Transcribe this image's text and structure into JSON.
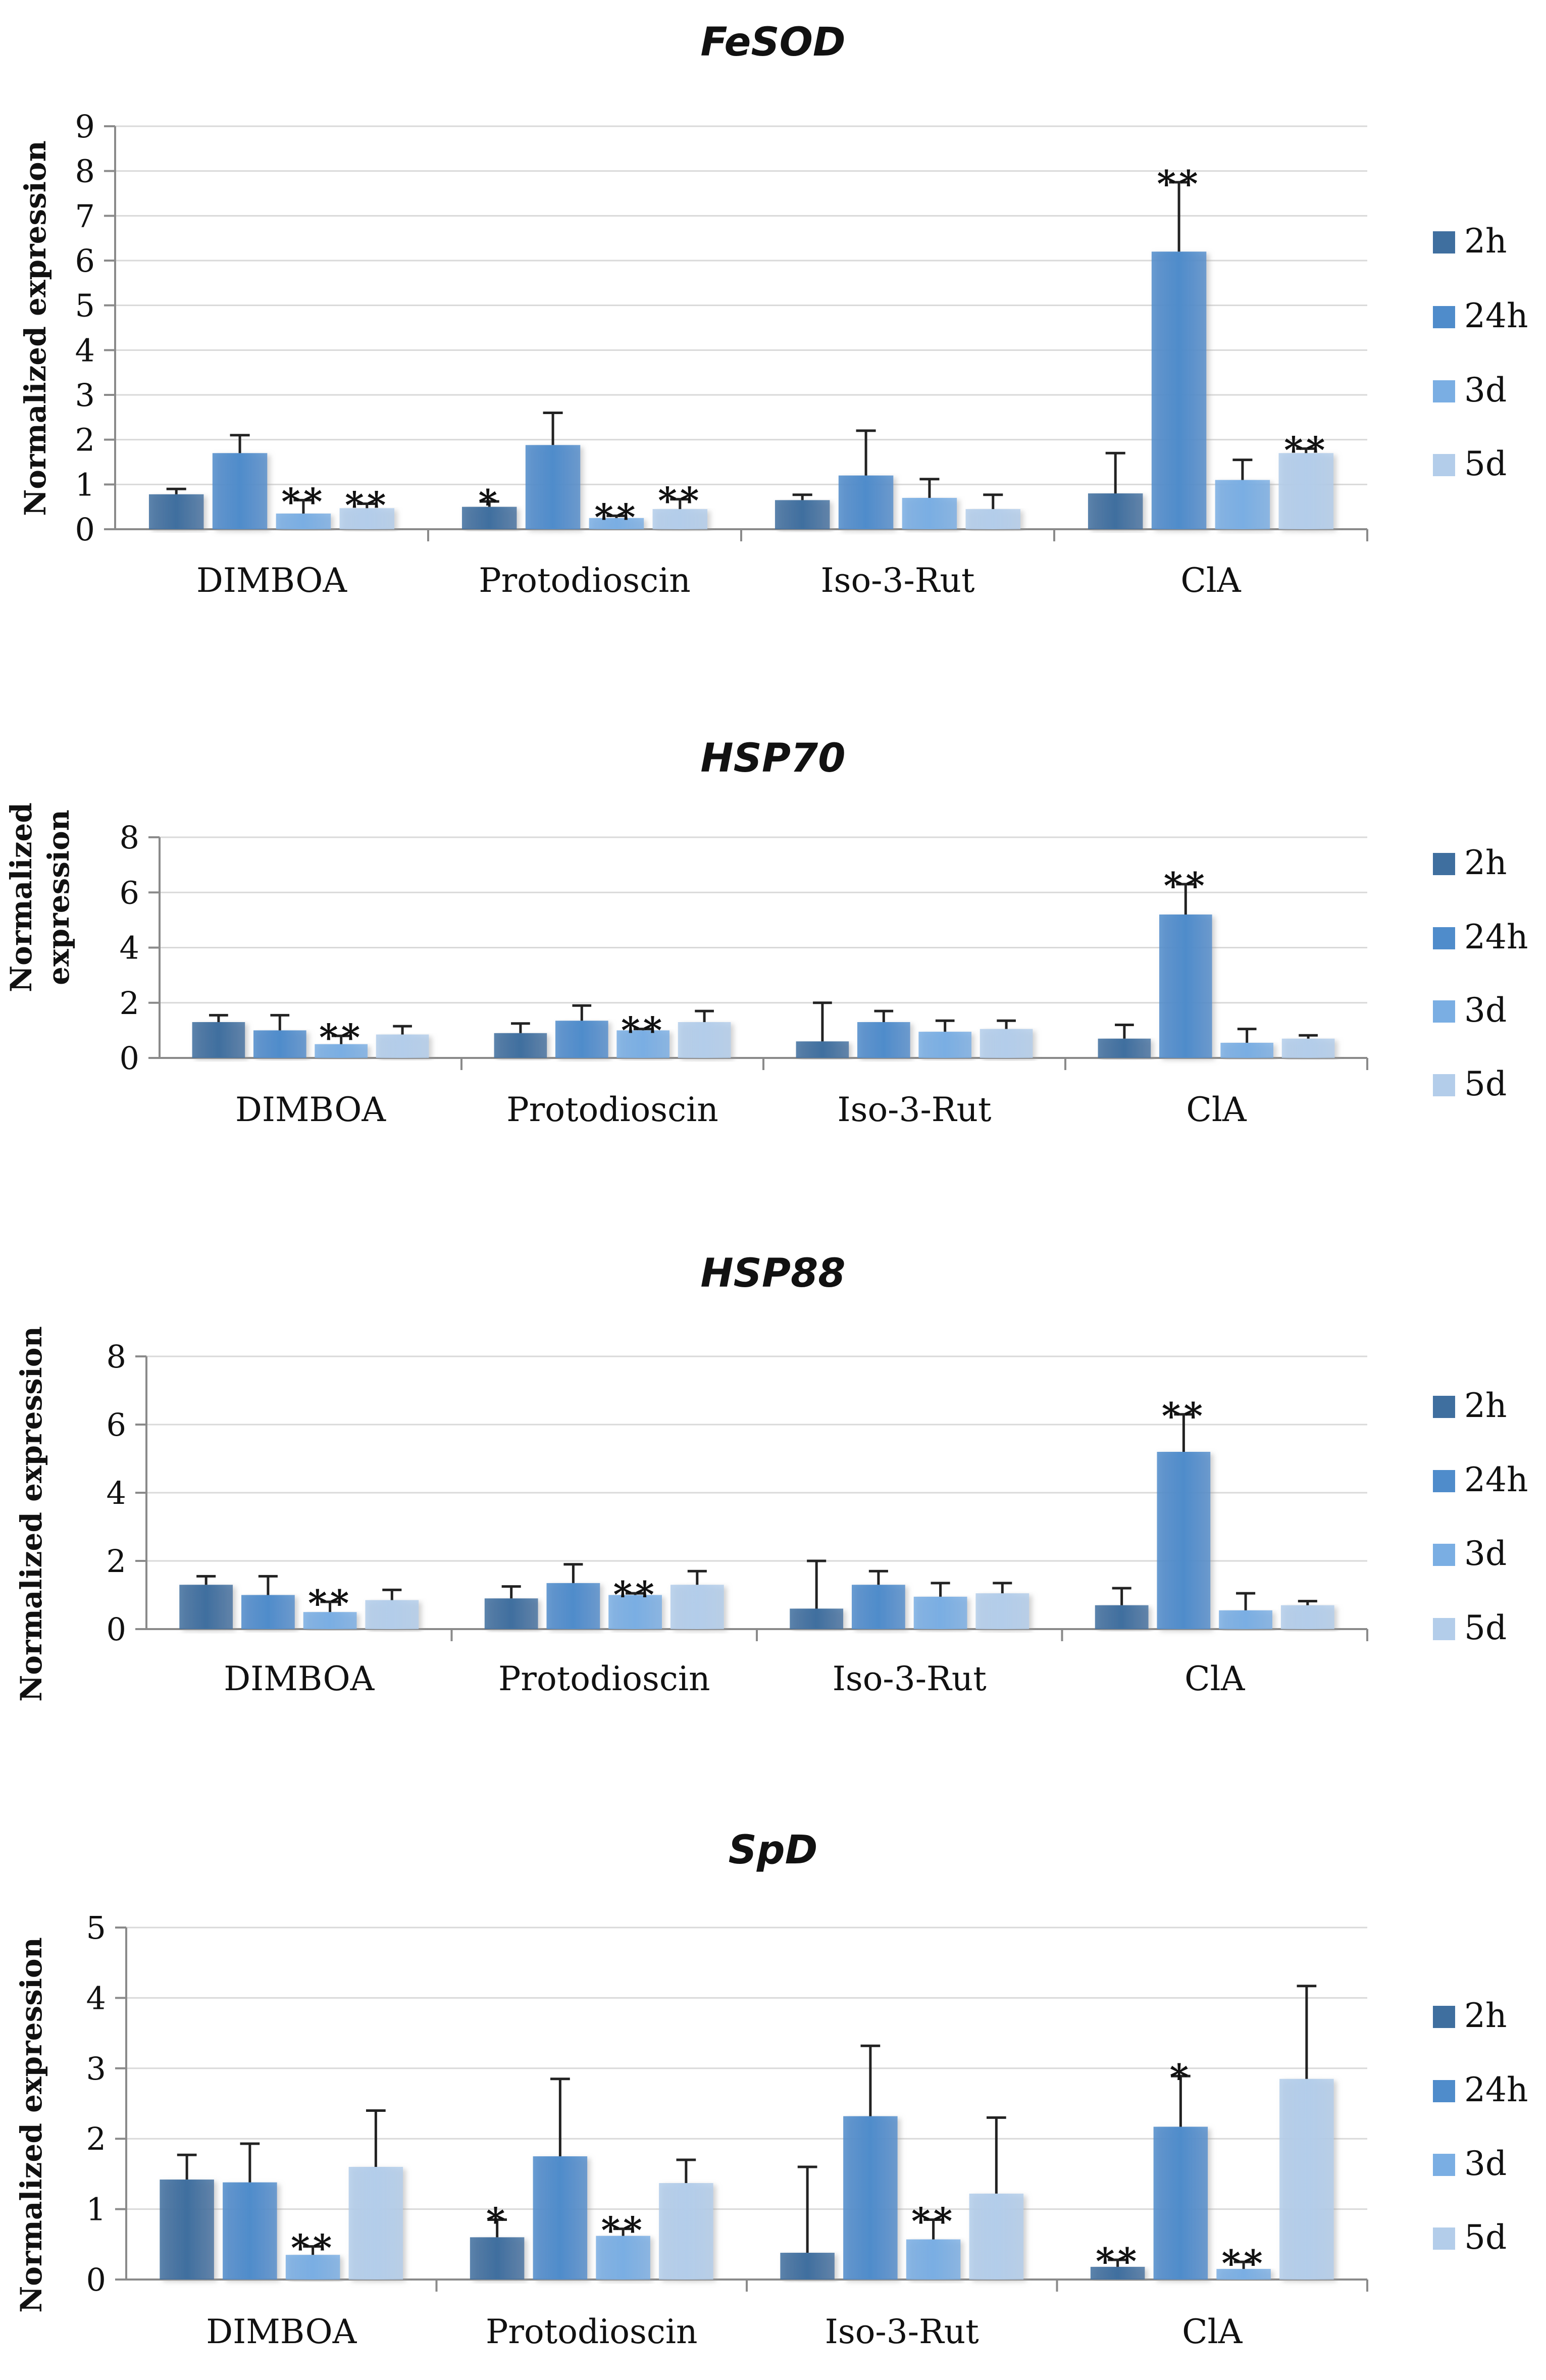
{
  "figure": {
    "description_free": true
  },
  "colors": {
    "2h": "#3f6f9f",
    "24h": "#4f8ccb",
    "3d": "#7aaee3",
    "5d": "#b3cdea",
    "error_bar": "#222222",
    "axis": "#8a8a8a",
    "grid": "#d9d9d9"
  },
  "chart_data": [
    {
      "type": "bar",
      "title": "FeSOD",
      "ylabel": "Normalized expression",
      "ylim": [
        0,
        9
      ],
      "yticks": [
        0,
        1,
        2,
        3,
        4,
        5,
        6,
        7,
        8,
        9
      ],
      "grid": true,
      "legend_position": "right",
      "categories": [
        "DIMBOA",
        "Protodioscin",
        "Iso-3-Rut",
        "ClA"
      ],
      "series": [
        {
          "name": "2h",
          "values": [
            0.78,
            0.5,
            0.65,
            0.8
          ],
          "errors": [
            0.12,
            0.12,
            0.12,
            0.9
          ],
          "sig": [
            "",
            "*",
            "",
            ""
          ]
        },
        {
          "name": "24h",
          "values": [
            1.7,
            1.88,
            1.2,
            6.2
          ],
          "errors": [
            0.4,
            0.72,
            1.0,
            1.55
          ],
          "sig": [
            "",
            "",
            "",
            "**"
          ]
        },
        {
          "name": "3d",
          "values": [
            0.35,
            0.25,
            0.7,
            1.1
          ],
          "errors": [
            0.3,
            0.05,
            0.42,
            0.45
          ],
          "sig": [
            "**",
            "**",
            "",
            ""
          ]
        },
        {
          "name": "5d",
          "values": [
            0.47,
            0.45,
            0.45,
            1.7
          ],
          "errors": [
            0.1,
            0.22,
            0.32,
            0.1
          ],
          "sig": [
            "**",
            "**",
            "",
            "**"
          ]
        }
      ]
    },
    {
      "type": "bar",
      "title": "HSP70",
      "ylabel": [
        "Normalized",
        "expression"
      ],
      "ylim": [
        0,
        8
      ],
      "yticks": [
        0,
        2,
        4,
        6,
        8
      ],
      "grid": true,
      "legend_position": "right",
      "categories": [
        "DIMBOA",
        "Protodioscin",
        "Iso-3-Rut",
        "ClA"
      ],
      "series": [
        {
          "name": "2h",
          "values": [
            1.3,
            0.9,
            0.6,
            0.7
          ],
          "errors": [
            0.25,
            0.35,
            1.4,
            0.5
          ],
          "sig": [
            "",
            "",
            "",
            ""
          ]
        },
        {
          "name": "24h",
          "values": [
            1.0,
            1.35,
            1.3,
            5.2
          ],
          "errors": [
            0.55,
            0.55,
            0.4,
            1.1
          ],
          "sig": [
            "",
            "",
            "",
            "**"
          ]
        },
        {
          "name": "3d",
          "values": [
            0.5,
            1.0,
            0.95,
            0.55
          ],
          "errors": [
            0.3,
            0.05,
            0.4,
            0.5
          ],
          "sig": [
            "**",
            "**",
            "",
            ""
          ]
        },
        {
          "name": "5d",
          "values": [
            0.85,
            1.3,
            1.05,
            0.7
          ],
          "errors": [
            0.3,
            0.4,
            0.3,
            0.12
          ],
          "sig": [
            "",
            "",
            "",
            ""
          ]
        }
      ]
    },
    {
      "type": "bar",
      "title": "HSP88",
      "ylabel": "Normalized expression",
      "ylim": [
        0,
        8
      ],
      "yticks": [
        0,
        2,
        4,
        6,
        8
      ],
      "grid": true,
      "legend_position": "right",
      "categories": [
        "DIMBOA",
        "Protodioscin",
        "Iso-3-Rut",
        "ClA"
      ],
      "series": [
        {
          "name": "2h",
          "values": [
            1.3,
            0.9,
            0.6,
            0.7
          ],
          "errors": [
            0.25,
            0.35,
            1.4,
            0.5
          ],
          "sig": [
            "",
            "",
            "",
            ""
          ]
        },
        {
          "name": "24h",
          "values": [
            1.0,
            1.35,
            1.3,
            5.2
          ],
          "errors": [
            0.55,
            0.55,
            0.4,
            1.1
          ],
          "sig": [
            "",
            "",
            "",
            "**"
          ]
        },
        {
          "name": "3d",
          "values": [
            0.5,
            1.0,
            0.95,
            0.55
          ],
          "errors": [
            0.3,
            0.05,
            0.4,
            0.5
          ],
          "sig": [
            "**",
            "**",
            "",
            ""
          ]
        },
        {
          "name": "5d",
          "values": [
            0.85,
            1.3,
            1.05,
            0.7
          ],
          "errors": [
            0.3,
            0.4,
            0.3,
            0.12
          ],
          "sig": [
            "",
            "",
            "",
            ""
          ]
        }
      ]
    },
    {
      "type": "bar",
      "title": "SpD",
      "ylabel": "Normalized expression",
      "ylim": [
        0,
        5
      ],
      "yticks": [
        0,
        1,
        2,
        3,
        4,
        5
      ],
      "grid": true,
      "legend_position": "right",
      "categories": [
        "DIMBOA",
        "Protodioscin",
        "Iso-3-Rut",
        "ClA"
      ],
      "series": [
        {
          "name": "2h",
          "values": [
            1.42,
            0.6,
            0.38,
            0.18
          ],
          "errors": [
            0.35,
            0.25,
            1.22,
            0.1
          ],
          "sig": [
            "",
            "*",
            "",
            "**"
          ]
        },
        {
          "name": "24h",
          "values": [
            1.38,
            1.75,
            2.32,
            2.17
          ],
          "errors": [
            0.55,
            1.1,
            1.0,
            0.72
          ],
          "sig": [
            "",
            "",
            "",
            "*"
          ]
        },
        {
          "name": "3d",
          "values": [
            0.35,
            0.62,
            0.57,
            0.15
          ],
          "errors": [
            0.12,
            0.1,
            0.28,
            0.1
          ],
          "sig": [
            "**",
            "**",
            "**",
            "**"
          ]
        },
        {
          "name": "5d",
          "values": [
            1.6,
            1.37,
            1.22,
            2.85
          ],
          "errors": [
            0.8,
            0.33,
            1.08,
            1.32
          ],
          "sig": [
            "",
            "",
            "",
            ""
          ]
        }
      ]
    }
  ]
}
